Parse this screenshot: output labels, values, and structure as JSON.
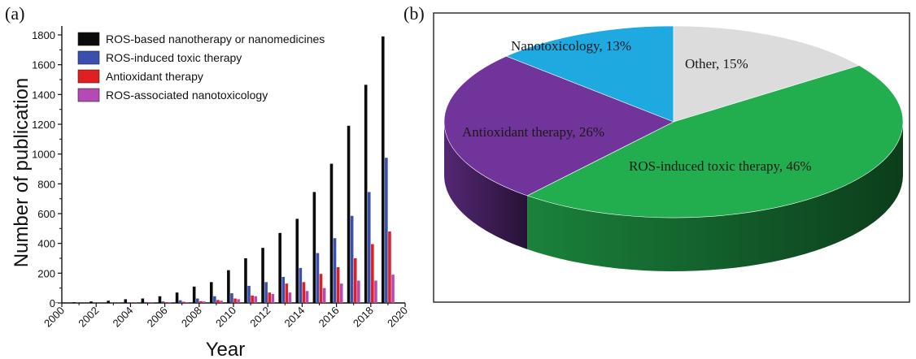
{
  "panels": {
    "a": "(a)",
    "b": "(b)"
  },
  "chart_data": [
    {
      "type": "bar",
      "panel": "(a)",
      "title": "",
      "xlabel": "Year",
      "ylabel": "Number of publication",
      "xlim": [
        2000,
        2020
      ],
      "ylim": [
        0,
        1800
      ],
      "xticks": [
        "2000",
        "2002",
        "2004",
        "2006",
        "2008",
        "2010",
        "2012",
        "2014",
        "2016",
        "2018",
        "2020"
      ],
      "yticks": [
        "0",
        "200",
        "400",
        "600",
        "800",
        "1000",
        "1200",
        "1400",
        "1600",
        "1800"
      ],
      "categories": [
        2000,
        2001,
        2002,
        2003,
        2004,
        2005,
        2006,
        2007,
        2008,
        2009,
        2010,
        2011,
        2012,
        2013,
        2014,
        2015,
        2016,
        2017,
        2018,
        2019
      ],
      "series": [
        {
          "name": "ROS-based nanotherapy or nanomedicines",
          "color": "#0a0a0a",
          "values": [
            3,
            5,
            10,
            15,
            25,
            30,
            45,
            70,
            110,
            140,
            220,
            300,
            370,
            470,
            565,
            745,
            935,
            1190,
            1465,
            1790
          ]
        },
        {
          "name": "ROS-induced toxic therapy",
          "color": "#3a4fb0",
          "values": [
            1,
            1,
            2,
            3,
            4,
            6,
            10,
            18,
            30,
            45,
            65,
            115,
            140,
            175,
            235,
            335,
            435,
            585,
            745,
            975
          ]
        },
        {
          "name": "Antioxidant therapy",
          "color": "#e02020",
          "values": [
            0,
            0,
            1,
            1,
            2,
            3,
            5,
            8,
            12,
            20,
            30,
            50,
            70,
            130,
            140,
            195,
            240,
            300,
            395,
            480
          ]
        },
        {
          "name": "ROS-associated nanotoxicology",
          "color": "#b549b5",
          "values": [
            0,
            0,
            1,
            1,
            2,
            2,
            4,
            6,
            10,
            15,
            25,
            45,
            60,
            70,
            80,
            100,
            130,
            150,
            150,
            190
          ]
        }
      ]
    },
    {
      "type": "pie",
      "panel": "(b)",
      "title": "",
      "slices": [
        {
          "label": "Nanotoxicology, 13%",
          "value": 13,
          "color": "#1ea9e0"
        },
        {
          "label": "Other, 15%",
          "value": 15,
          "color": "#dcdcdc"
        },
        {
          "label": "ROS-induced toxic therapy, 46%",
          "value": 46,
          "color": "#22ad4e"
        },
        {
          "label": "Antioxidant therapy, 26%",
          "value": 26,
          "color": "#70349b"
        }
      ]
    }
  ]
}
